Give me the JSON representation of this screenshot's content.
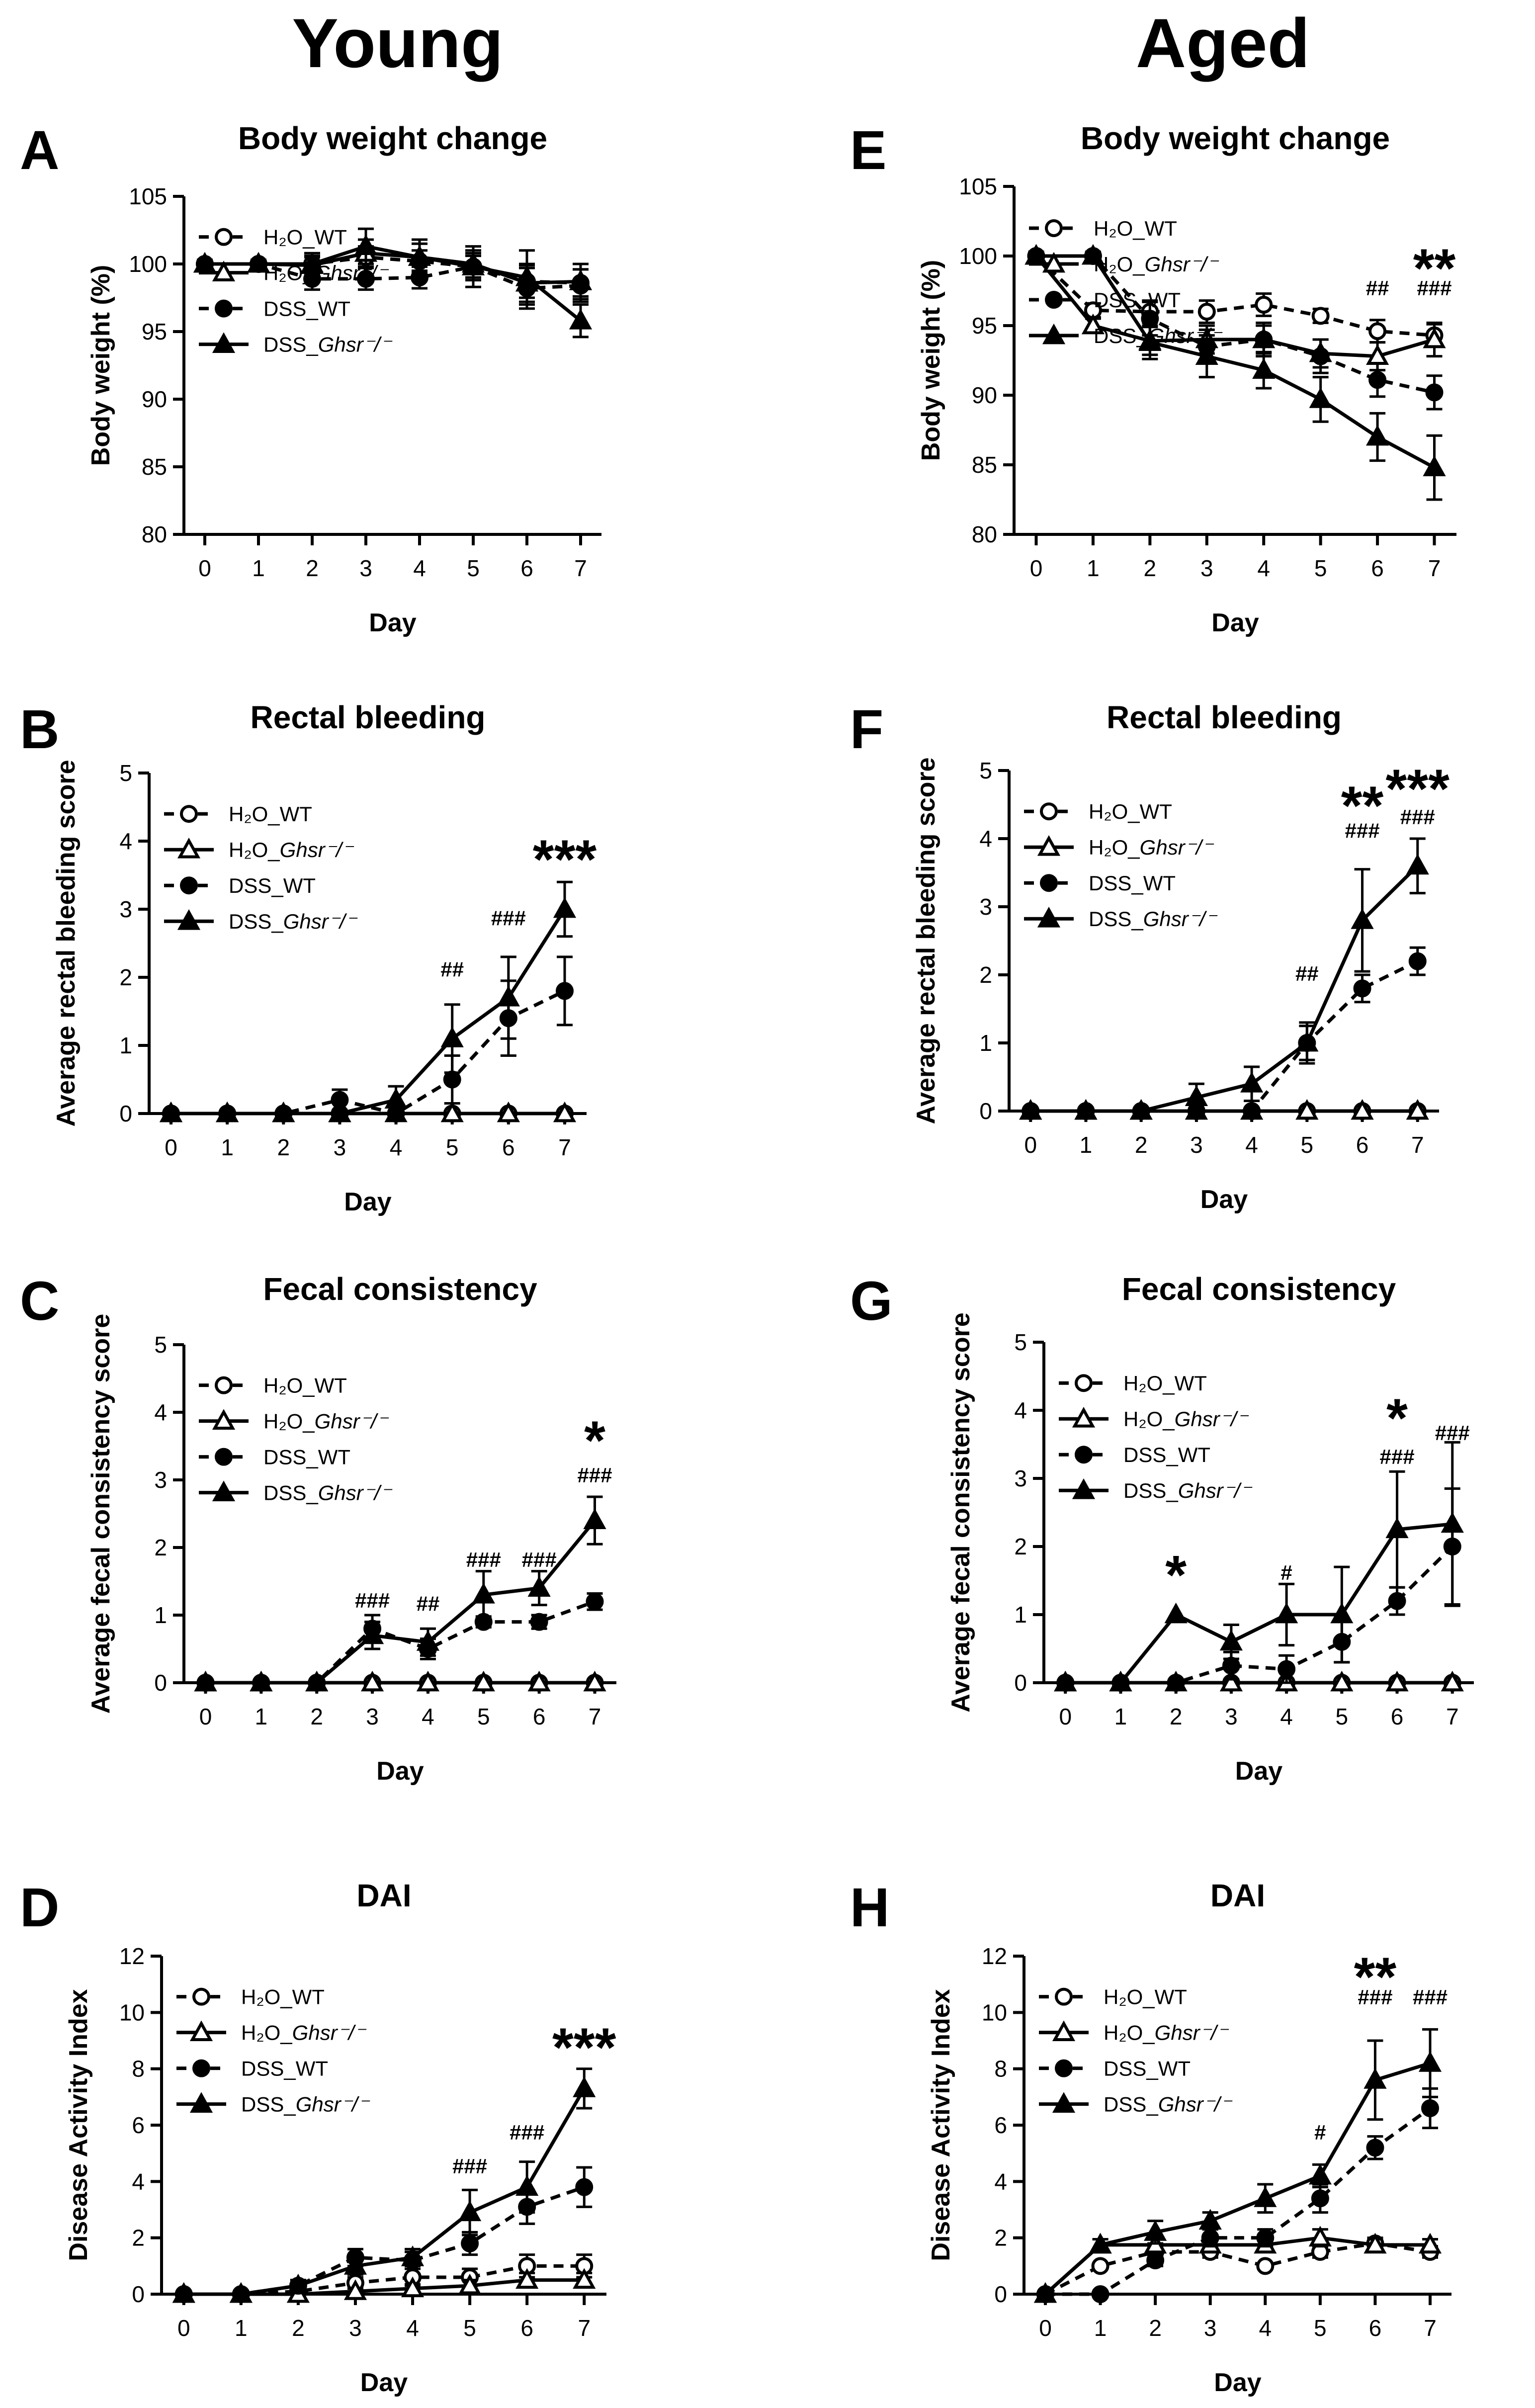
{
  "columns": [
    {
      "title": "Young"
    },
    {
      "title": "Aged"
    }
  ],
  "legend": [
    "H₂O_WT",
    "H₂O_Ghsr⁻/⁻",
    "DSS_WT",
    "DSS_Ghsr⁻/⁻"
  ],
  "chart_data": [
    {
      "panel": "A",
      "type": "line",
      "title": "Body weight change",
      "xlabel": "Day",
      "ylabel": "Body weight (%)",
      "x": [
        0,
        1,
        2,
        3,
        4,
        5,
        6,
        7
      ],
      "ylim": [
        80,
        105
      ],
      "yticks": [
        80,
        85,
        90,
        95,
        100,
        105
      ],
      "series": [
        {
          "name": "H₂O_WT",
          "values": [
            100,
            100,
            100,
            100.5,
            100.2,
            99.8,
            98.7,
            98.6
          ],
          "err": [
            0.3,
            0.3,
            0.6,
            0.8,
            0.8,
            0.8,
            1.2,
            1.0
          ]
        },
        {
          "name": "H₂O_Ghsr⁻/⁻",
          "values": [
            100,
            100,
            99.9,
            100.8,
            100.5,
            100.0,
            98.6,
            98.7
          ],
          "err": [
            0.3,
            0.3,
            0.6,
            1.0,
            1.0,
            1.0,
            1.4,
            1.3
          ]
        },
        {
          "name": "DSS_WT",
          "values": [
            100,
            100,
            98.9,
            98.9,
            99.0,
            99.8,
            98.2,
            98.4
          ],
          "err": [
            0.3,
            0.3,
            0.8,
            0.8,
            0.8,
            1.0,
            1.5,
            1.2
          ]
        },
        {
          "name": "DSS_Ghsr⁻/⁻",
          "values": [
            100,
            100,
            100,
            101.3,
            100.5,
            99.8,
            99.0,
            95.8
          ],
          "err": [
            0.3,
            0.3,
            0.8,
            1.3,
            1.3,
            1.5,
            2.0,
            1.2
          ]
        }
      ],
      "annotations": []
    },
    {
      "panel": "B",
      "type": "line",
      "title": "Rectal bleeding",
      "xlabel": "Day",
      "ylabel": "Average rectal bleeding score",
      "x": [
        0,
        1,
        2,
        3,
        4,
        5,
        6,
        7
      ],
      "ylim": [
        0,
        5
      ],
      "yticks": [
        0,
        1,
        2,
        3,
        4,
        5
      ],
      "series": [
        {
          "name": "H₂O_WT",
          "values": [
            0,
            0,
            0,
            0,
            0,
            0,
            0,
            0
          ],
          "err": [
            0,
            0,
            0,
            0,
            0,
            0,
            0,
            0
          ]
        },
        {
          "name": "H₂O_Ghsr⁻/⁻",
          "values": [
            0,
            0,
            0,
            0,
            0,
            0,
            0,
            0
          ],
          "err": [
            0,
            0,
            0,
            0,
            0,
            0,
            0,
            0
          ]
        },
        {
          "name": "DSS_WT",
          "values": [
            0,
            0,
            0,
            0.2,
            0,
            0.5,
            1.4,
            1.8
          ],
          "err": [
            0,
            0,
            0,
            0.15,
            0,
            0.35,
            0.55,
            0.5
          ]
        },
        {
          "name": "DSS_Ghsr⁻/⁻",
          "values": [
            0,
            0,
            0,
            0,
            0.2,
            1.1,
            1.7,
            3.0
          ],
          "err": [
            0,
            0,
            0,
            0,
            0.2,
            0.5,
            0.6,
            0.4
          ]
        }
      ],
      "annotations": [
        {
          "day": 5,
          "text": "##",
          "y": 2.1,
          "size": "small"
        },
        {
          "day": 6,
          "text": "###",
          "y": 2.85,
          "size": "small"
        },
        {
          "day": 7,
          "text": "***",
          "y": 3.75,
          "size": "large"
        }
      ]
    },
    {
      "panel": "C",
      "type": "line",
      "title": "Fecal consistency",
      "xlabel": "Day",
      "ylabel": "Average fecal consistency score",
      "x": [
        0,
        1,
        2,
        3,
        4,
        5,
        6,
        7
      ],
      "ylim": [
        0,
        5
      ],
      "yticks": [
        0,
        1,
        2,
        3,
        4,
        5
      ],
      "series": [
        {
          "name": "H₂O_WT",
          "values": [
            0,
            0,
            0,
            0,
            0,
            0,
            0,
            0
          ],
          "err": [
            0,
            0,
            0,
            0,
            0,
            0,
            0,
            0
          ]
        },
        {
          "name": "H₂O_Ghsr⁻/⁻",
          "values": [
            0,
            0,
            0,
            0,
            0,
            0,
            0,
            0
          ],
          "err": [
            0,
            0,
            0,
            0,
            0,
            0,
            0,
            0
          ]
        },
        {
          "name": "DSS_WT",
          "values": [
            0,
            0,
            0,
            0.8,
            0.5,
            0.9,
            0.9,
            1.2
          ],
          "err": [
            0,
            0,
            0,
            0.2,
            0.15,
            0.08,
            0.1,
            0.12
          ]
        },
        {
          "name": "DSS_Ghsr⁻/⁻",
          "values": [
            0,
            0,
            0,
            0.7,
            0.6,
            1.3,
            1.4,
            2.4
          ],
          "err": [
            0,
            0,
            0,
            0.2,
            0.2,
            0.35,
            0.25,
            0.35
          ]
        }
      ],
      "annotations": [
        {
          "day": 3,
          "text": "###",
          "y": 1.2,
          "size": "small"
        },
        {
          "day": 4,
          "text": "##",
          "y": 1.15,
          "size": "small"
        },
        {
          "day": 5,
          "text": "###",
          "y": 1.8,
          "size": "small"
        },
        {
          "day": 6,
          "text": "###",
          "y": 1.8,
          "size": "small"
        },
        {
          "day": 7,
          "text": "###",
          "y": 3.05,
          "size": "small"
        },
        {
          "day": 7,
          "text": "*",
          "y": 3.6,
          "size": "large"
        }
      ]
    },
    {
      "panel": "D",
      "type": "line",
      "title": "DAI",
      "xlabel": "Day",
      "ylabel": "Disease Activity Index",
      "x": [
        0,
        1,
        2,
        3,
        4,
        5,
        6,
        7
      ],
      "ylim": [
        0,
        12
      ],
      "yticks": [
        0,
        2,
        4,
        6,
        8,
        10,
        12
      ],
      "series": [
        {
          "name": "H₂O_WT",
          "values": [
            0,
            0,
            0.1,
            0.4,
            0.6,
            0.6,
            1.0,
            1.0
          ],
          "err": [
            0,
            0,
            0.1,
            0.2,
            0.3,
            0.3,
            0.4,
            0.4
          ]
        },
        {
          "name": "H₂O_Ghsr⁻/⁻",
          "values": [
            0,
            0,
            0,
            0.1,
            0.2,
            0.3,
            0.5,
            0.5
          ],
          "err": [
            0,
            0,
            0,
            0.1,
            0.15,
            0.2,
            0.25,
            0.25
          ]
        },
        {
          "name": "DSS_WT",
          "values": [
            0,
            0,
            0.3,
            1.3,
            1.2,
            1.8,
            3.1,
            3.8
          ],
          "err": [
            0,
            0,
            0.2,
            0.3,
            0.3,
            0.4,
            0.6,
            0.7
          ]
        },
        {
          "name": "DSS_Ghsr⁻/⁻",
          "values": [
            0,
            0,
            0.3,
            1.0,
            1.3,
            2.9,
            3.8,
            7.3
          ],
          "err": [
            0,
            0,
            0.2,
            0.3,
            0.3,
            0.8,
            0.9,
            0.7
          ]
        }
      ],
      "annotations": [
        {
          "day": 5,
          "text": "###",
          "y": 4.5,
          "size": "small"
        },
        {
          "day": 6,
          "text": "###",
          "y": 5.7,
          "size": "small"
        },
        {
          "day": 7,
          "text": "***",
          "y": 8.8,
          "size": "large"
        }
      ]
    },
    {
      "panel": "E",
      "type": "line",
      "title": "Body weight change",
      "xlabel": "Day",
      "ylabel": "Body weight (%)",
      "x": [
        0,
        1,
        2,
        3,
        4,
        5,
        6,
        7
      ],
      "ylim": [
        80,
        105
      ],
      "yticks": [
        80,
        85,
        90,
        95,
        100,
        105
      ],
      "series": [
        {
          "name": "H₂O_WT",
          "values": [
            100,
            96.1,
            96.0,
            96.0,
            96.5,
            95.7,
            94.6,
            94.3
          ],
          "err": [
            0.3,
            0.5,
            0.8,
            0.8,
            0.8,
            0.5,
            0.8,
            0.8
          ]
        },
        {
          "name": "H₂O_Ghsr⁻/⁻",
          "values": [
            100,
            95.0,
            93.9,
            94.0,
            94.0,
            93.0,
            92.8,
            94.0
          ],
          "err": [
            0.3,
            0.5,
            1.0,
            1.0,
            1.0,
            1.0,
            1.0,
            1.2
          ]
        },
        {
          "name": "DSS_WT",
          "values": [
            100,
            100,
            95.5,
            93.5,
            94.0,
            92.8,
            91.1,
            90.2
          ],
          "err": [
            0.3,
            0.3,
            1.2,
            1.2,
            1.2,
            1.2,
            1.2,
            1.2
          ]
        },
        {
          "name": "DSS_Ghsr⁻/⁻",
          "values": [
            100,
            100,
            93.8,
            92.8,
            91.8,
            89.7,
            87.0,
            84.8
          ],
          "err": [
            0.3,
            0.3,
            1.2,
            1.5,
            1.3,
            1.6,
            1.7,
            2.3
          ]
        }
      ],
      "annotations": [
        {
          "day": 6,
          "text": "##",
          "y": 97.6,
          "size": "small"
        },
        {
          "day": 7,
          "text": "###",
          "y": 97.6,
          "size": "small"
        },
        {
          "day": 7,
          "text": "**",
          "y": 99.2,
          "size": "large"
        }
      ]
    },
    {
      "panel": "F",
      "type": "line",
      "title": "Rectal bleeding",
      "xlabel": "Day",
      "ylabel": "Average rectal bleeding score",
      "x": [
        0,
        1,
        2,
        3,
        4,
        5,
        6,
        7
      ],
      "ylim": [
        0,
        5
      ],
      "yticks": [
        0,
        1,
        2,
        3,
        4,
        5
      ],
      "series": [
        {
          "name": "H₂O_WT",
          "values": [
            0,
            0,
            0,
            0,
            0,
            0,
            0,
            0
          ],
          "err": [
            0,
            0,
            0,
            0,
            0,
            0,
            0,
            0
          ]
        },
        {
          "name": "H₂O_Ghsr⁻/⁻",
          "values": [
            0,
            0,
            0,
            0,
            0,
            0,
            0,
            0
          ],
          "err": [
            0,
            0,
            0,
            0,
            0,
            0,
            0,
            0
          ]
        },
        {
          "name": "DSS_WT",
          "values": [
            0,
            0,
            0,
            0,
            0,
            1.0,
            1.8,
            2.2
          ],
          "err": [
            0,
            0,
            0,
            0,
            0,
            0.25,
            0.2,
            0.2
          ]
        },
        {
          "name": "DSS_Ghsr⁻/⁻",
          "values": [
            0,
            0,
            0,
            0.2,
            0.4,
            1.0,
            2.8,
            3.6
          ],
          "err": [
            0,
            0,
            0,
            0.2,
            0.25,
            0.3,
            0.75,
            0.4
          ]
        }
      ],
      "annotations": [
        {
          "day": 5,
          "text": "##",
          "y": 2.0,
          "size": "small"
        },
        {
          "day": 6,
          "text": "###",
          "y": 4.1,
          "size": "small"
        },
        {
          "day": 6,
          "text": "**",
          "y": 4.5,
          "size": "large"
        },
        {
          "day": 7,
          "text": "###",
          "y": 4.3,
          "size": "small"
        },
        {
          "day": 7,
          "text": "***",
          "y": 4.75,
          "size": "large"
        }
      ]
    },
    {
      "panel": "G",
      "type": "line",
      "title": "Fecal consistency",
      "xlabel": "Day",
      "ylabel": "Average fecal consistency score",
      "x": [
        0,
        1,
        2,
        3,
        4,
        5,
        6,
        7
      ],
      "ylim": [
        0,
        5
      ],
      "yticks": [
        0,
        1,
        2,
        3,
        4,
        5
      ],
      "series": [
        {
          "name": "H₂O_WT",
          "values": [
            0,
            0,
            0,
            0,
            0,
            0,
            0,
            0
          ],
          "err": [
            0,
            0,
            0,
            0,
            0,
            0,
            0,
            0
          ]
        },
        {
          "name": "H₂O_Ghsr⁻/⁻",
          "values": [
            0,
            0,
            0,
            0,
            0,
            0,
            0,
            0
          ],
          "err": [
            0,
            0,
            0,
            0,
            0,
            0,
            0,
            0
          ]
        },
        {
          "name": "DSS_WT",
          "values": [
            0,
            0,
            0,
            0.25,
            0.2,
            0.6,
            1.2,
            2.0
          ],
          "err": [
            0,
            0,
            0,
            0.2,
            0.2,
            0.3,
            0.2,
            0.85
          ]
        },
        {
          "name": "DSS_Ghsr⁻/⁻",
          "values": [
            0,
            0,
            1.0,
            0.6,
            1.0,
            1.0,
            2.25,
            2.33
          ],
          "err": [
            0,
            0,
            0,
            0.25,
            0.45,
            0.7,
            0.85,
            1.2
          ]
        }
      ],
      "annotations": [
        {
          "day": 2,
          "text": "*",
          "y": 1.6,
          "size": "large"
        },
        {
          "day": 4,
          "text": "#",
          "y": 1.6,
          "size": "small"
        },
        {
          "day": 6,
          "text": "###",
          "y": 3.3,
          "size": "small"
        },
        {
          "day": 6,
          "text": "*",
          "y": 3.9,
          "size": "large"
        },
        {
          "day": 7,
          "text": "###",
          "y": 3.65,
          "size": "small"
        }
      ]
    },
    {
      "panel": "H",
      "type": "line",
      "title": "DAI",
      "xlabel": "Day",
      "ylabel": "Disease Activity Index",
      "x": [
        0,
        1,
        2,
        3,
        4,
        5,
        6,
        7
      ],
      "ylim": [
        0,
        12
      ],
      "yticks": [
        0,
        2,
        4,
        6,
        8,
        10,
        12
      ],
      "series": [
        {
          "name": "H₂O_WT",
          "values": [
            0,
            1.0,
            1.5,
            1.5,
            1.0,
            1.5,
            1.8,
            1.5
          ],
          "err": [
            0,
            0,
            0.2,
            0.2,
            0,
            0.2,
            0.2,
            0.2
          ]
        },
        {
          "name": "H₂O_Ghsr⁻/⁻",
          "values": [
            0,
            1.75,
            1.75,
            1.75,
            1.75,
            2.0,
            1.75,
            1.75
          ],
          "err": [
            0,
            0.2,
            0.2,
            0.2,
            0.2,
            0.3,
            0.2,
            0.2
          ]
        },
        {
          "name": "DSS_WT",
          "values": [
            0,
            0,
            1.2,
            2.0,
            2.0,
            3.4,
            5.2,
            6.6
          ],
          "err": [
            0,
            0,
            0.2,
            0.3,
            0.3,
            0.5,
            0.4,
            0.7
          ]
        },
        {
          "name": "DSS_Ghsr⁻/⁻",
          "values": [
            0,
            1.75,
            2.2,
            2.6,
            3.4,
            4.2,
            7.6,
            8.2
          ],
          "err": [
            0,
            0.2,
            0.4,
            0.3,
            0.5,
            0.4,
            1.4,
            1.2
          ]
        }
      ],
      "annotations": [
        {
          "day": 5,
          "text": "#",
          "y": 5.7,
          "size": "small"
        },
        {
          "day": 6,
          "text": "###",
          "y": 10.5,
          "size": "small"
        },
        {
          "day": 6,
          "text": "**",
          "y": 11.3,
          "size": "large"
        },
        {
          "day": 7,
          "text": "###",
          "y": 10.5,
          "size": "small"
        }
      ]
    }
  ]
}
